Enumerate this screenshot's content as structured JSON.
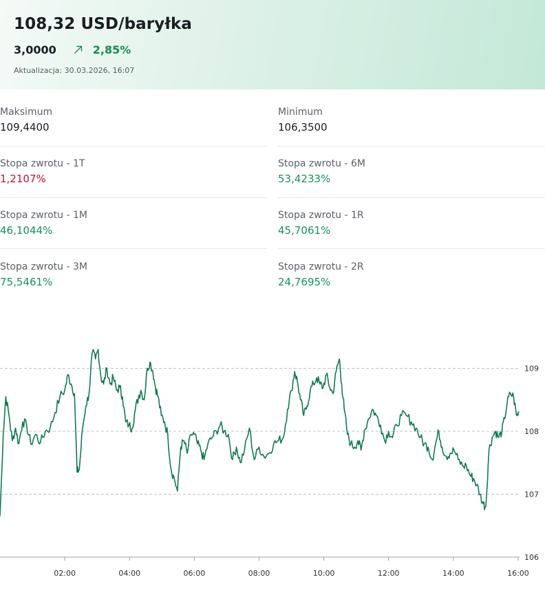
{
  "header": {
    "price": "108,32 USD/baryłka",
    "change_abs": "3,0000",
    "change_pct": "2,85%",
    "trend_icon": "arrow-up-right-icon",
    "updated": "Aktualizacja: 30.03.2026, 16:07",
    "colors": {
      "up": "#1a8a52",
      "down": "#c4122f"
    }
  },
  "stats": {
    "max": {
      "label": "Maksimum",
      "value": "109,4400"
    },
    "min": {
      "label": "Minimum",
      "value": "106,3500"
    },
    "r1t": {
      "label": "Stopa zwrotu - 1T",
      "value": "1,2107%"
    },
    "r6m": {
      "label": "Stopa zwrotu - 6M",
      "value": "53,4233%"
    },
    "r1m": {
      "label": "Stopa zwrotu - 1M",
      "value": "46,1044%"
    },
    "r1r": {
      "label": "Stopa zwrotu - 1R",
      "value": "45,7061%"
    },
    "r3m": {
      "label": "Stopa zwrotu - 3M",
      "value": "75,5461%"
    },
    "r2r": {
      "label": "Stopa zwrotu - 2R",
      "value": "24,7695%"
    }
  },
  "chart_data": {
    "type": "line",
    "x_ticks": [
      "02:00",
      "04:00",
      "06:00",
      "08:00",
      "10:00",
      "12:00",
      "14:00",
      "16:00"
    ],
    "y_ticks": [
      106,
      107,
      108,
      109
    ],
    "ylim": [
      106,
      109.8
    ],
    "xlim_hours": [
      0,
      16.07
    ],
    "grid": "horizontal-dashed",
    "line_color": "#127a4e",
    "series": [
      {
        "values": [
          [
            0.0,
            106.65
          ],
          [
            0.1,
            107.95
          ],
          [
            0.18,
            108.55
          ],
          [
            0.28,
            108.25
          ],
          [
            0.38,
            107.85
          ],
          [
            0.48,
            108.05
          ],
          [
            0.58,
            107.8
          ],
          [
            0.7,
            108.15
          ],
          [
            0.82,
            108.1
          ],
          [
            0.95,
            107.8
          ],
          [
            1.1,
            107.95
          ],
          [
            1.25,
            107.82
          ],
          [
            1.4,
            108.0
          ],
          [
            1.55,
            108.05
          ],
          [
            1.7,
            108.3
          ],
          [
            1.85,
            108.55
          ],
          [
            2.0,
            108.65
          ],
          [
            2.1,
            108.9
          ],
          [
            2.2,
            108.75
          ],
          [
            2.3,
            108.6
          ],
          [
            2.38,
            107.35
          ],
          [
            2.45,
            107.4
          ],
          [
            2.55,
            108.05
          ],
          [
            2.65,
            108.4
          ],
          [
            2.75,
            108.6
          ],
          [
            2.85,
            109.25
          ],
          [
            2.95,
            109.15
          ],
          [
            3.03,
            109.3
          ],
          [
            3.12,
            108.85
          ],
          [
            3.2,
            108.75
          ],
          [
            3.3,
            109.0
          ],
          [
            3.4,
            108.75
          ],
          [
            3.5,
            108.85
          ],
          [
            3.6,
            108.65
          ],
          [
            3.7,
            108.7
          ],
          [
            3.78,
            108.55
          ],
          [
            3.88,
            108.15
          ],
          [
            3.98,
            108.1
          ],
          [
            4.08,
            108.05
          ],
          [
            4.18,
            108.35
          ],
          [
            4.28,
            108.55
          ],
          [
            4.35,
            108.65
          ],
          [
            4.45,
            108.5
          ],
          [
            4.55,
            109.0
          ],
          [
            4.63,
            109.1
          ],
          [
            4.72,
            108.95
          ],
          [
            4.8,
            108.7
          ],
          [
            4.88,
            108.55
          ],
          [
            4.98,
            108.25
          ],
          [
            5.08,
            108.15
          ],
          [
            5.18,
            107.95
          ],
          [
            5.28,
            107.4
          ],
          [
            5.38,
            107.25
          ],
          [
            5.48,
            107.05
          ],
          [
            5.58,
            107.75
          ],
          [
            5.68,
            107.85
          ],
          [
            5.78,
            107.65
          ],
          [
            5.9,
            107.95
          ],
          [
            6.0,
            107.95
          ],
          [
            6.1,
            107.8
          ],
          [
            6.2,
            107.7
          ],
          [
            6.3,
            107.55
          ],
          [
            6.42,
            107.8
          ],
          [
            6.55,
            107.9
          ],
          [
            6.68,
            108.0
          ],
          [
            6.8,
            108.1
          ],
          [
            6.92,
            108.0
          ],
          [
            7.05,
            107.95
          ],
          [
            7.18,
            107.55
          ],
          [
            7.3,
            107.75
          ],
          [
            7.42,
            107.5
          ],
          [
            7.55,
            107.7
          ],
          [
            7.7,
            108.05
          ],
          [
            7.85,
            107.55
          ],
          [
            8.0,
            107.75
          ],
          [
            8.15,
            107.6
          ],
          [
            8.3,
            107.65
          ],
          [
            8.45,
            107.8
          ],
          [
            8.6,
            107.85
          ],
          [
            8.75,
            107.9
          ],
          [
            8.88,
            108.35
          ],
          [
            9.0,
            108.65
          ],
          [
            9.1,
            108.95
          ],
          [
            9.18,
            108.8
          ],
          [
            9.28,
            108.5
          ],
          [
            9.38,
            108.25
          ],
          [
            9.48,
            108.4
          ],
          [
            9.58,
            108.65
          ],
          [
            9.68,
            108.75
          ],
          [
            9.78,
            108.85
          ],
          [
            9.88,
            108.75
          ],
          [
            9.98,
            108.7
          ],
          [
            10.08,
            108.9
          ],
          [
            10.18,
            108.7
          ],
          [
            10.28,
            108.6
          ],
          [
            10.38,
            108.95
          ],
          [
            10.48,
            109.15
          ],
          [
            10.55,
            108.75
          ],
          [
            10.63,
            108.35
          ],
          [
            10.73,
            107.95
          ],
          [
            10.83,
            107.8
          ],
          [
            10.95,
            107.75
          ],
          [
            11.05,
            107.85
          ],
          [
            11.15,
            107.7
          ],
          [
            11.25,
            108.0
          ],
          [
            11.38,
            108.2
          ],
          [
            11.5,
            108.35
          ],
          [
            11.62,
            108.25
          ],
          [
            11.75,
            108.1
          ],
          [
            11.88,
            107.85
          ],
          [
            12.0,
            108.0
          ],
          [
            12.12,
            107.9
          ],
          [
            12.25,
            108.1
          ],
          [
            12.4,
            108.25
          ],
          [
            12.55,
            108.25
          ],
          [
            12.7,
            108.15
          ],
          [
            12.85,
            108.05
          ],
          [
            12.98,
            107.9
          ],
          [
            13.1,
            107.8
          ],
          [
            13.22,
            107.75
          ],
          [
            13.35,
            107.55
          ],
          [
            13.45,
            107.8
          ],
          [
            13.55,
            108.0
          ],
          [
            13.65,
            107.75
          ],
          [
            13.78,
            107.6
          ],
          [
            13.9,
            107.65
          ],
          [
            14.02,
            107.7
          ],
          [
            14.15,
            107.55
          ],
          [
            14.28,
            107.45
          ],
          [
            14.4,
            107.45
          ],
          [
            14.52,
            107.3
          ],
          [
            14.62,
            107.25
          ],
          [
            14.72,
            107.15
          ],
          [
            14.82,
            107.0
          ],
          [
            14.92,
            106.85
          ],
          [
            15.0,
            106.8
          ],
          [
            15.1,
            107.7
          ],
          [
            15.2,
            107.9
          ],
          [
            15.3,
            108.0
          ],
          [
            15.4,
            107.9
          ],
          [
            15.5,
            108.0
          ],
          [
            15.58,
            108.2
          ],
          [
            15.66,
            108.45
          ],
          [
            15.76,
            108.6
          ],
          [
            15.86,
            108.55
          ],
          [
            15.95,
            108.25
          ],
          [
            16.03,
            108.3
          ]
        ]
      }
    ]
  }
}
